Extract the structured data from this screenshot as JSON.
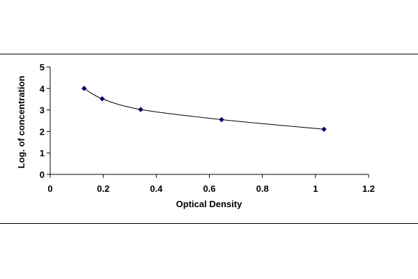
{
  "chart_data": {
    "type": "scatter",
    "title": "",
    "xlabel": "Optical Density",
    "ylabel": "Log. of concentration",
    "xlim": [
      0,
      1.2
    ],
    "ylim": [
      0,
      5
    ],
    "x_ticks": [
      "0",
      "0.2",
      "0.4",
      "0.6",
      "0.8",
      "1",
      "1.2"
    ],
    "y_ticks": [
      "0",
      "1",
      "2",
      "3",
      "4",
      "5"
    ],
    "grid": false,
    "legend": "none",
    "series": [
      {
        "x": [
          0.128,
          0.196,
          0.341,
          0.646,
          1.032
        ],
        "y": [
          4.0,
          3.52,
          3.02,
          2.55,
          2.1
        ],
        "marker": "diamond",
        "line": "smooth"
      }
    ],
    "colors": {
      "series": "#000080",
      "line": "#000000",
      "axis": "#000000"
    }
  }
}
